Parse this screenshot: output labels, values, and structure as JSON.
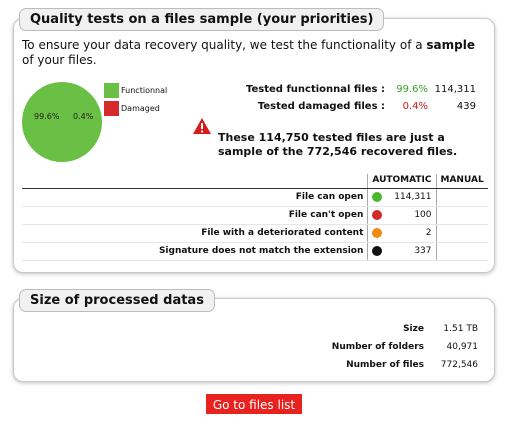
{
  "quality": {
    "title": "Quality tests on a files sample (your priorities)",
    "intro_before": "To ensure your data recovery quality, we test the functionality of a ",
    "intro_bold": "sample",
    "intro_after": " of your files.",
    "pie": {
      "functional_pct_label": "99.6%",
      "damaged_pct_label": "0.4%",
      "legend": [
        {
          "label": "Functionnal",
          "color": "#6abf45"
        },
        {
          "label": "Damaged",
          "color": "#d42a2a"
        }
      ]
    },
    "stats": [
      {
        "label": "Tested functionnal files :",
        "pct": "99.6%",
        "count": "114,311",
        "color": "#3aa02a"
      },
      {
        "label": "Tested damaged files :",
        "pct": "0.4%",
        "count": "439",
        "color": "#d01616"
      }
    ],
    "warning": "These 114,750 tested files are just a sample of the 772,546 recovered files.",
    "table": {
      "col_auto": "AUTOMATIC",
      "col_manual": "MANUAL",
      "rows": [
        {
          "label": "File can open",
          "dot": "#4cb82d",
          "value": "114,311",
          "manual": ""
        },
        {
          "label": "File can't open",
          "dot": "#d02a2a",
          "value": "100",
          "manual": ""
        },
        {
          "label": "File with a deteriorated content",
          "dot": "#ef8a12",
          "value": "2",
          "manual": ""
        },
        {
          "label": "Signature does not match the extension",
          "dot": "#111111",
          "value": "337",
          "manual": ""
        }
      ]
    }
  },
  "processed": {
    "title": "Size of processed datas",
    "rows": [
      {
        "label": "Size",
        "value": "1.51 TB"
      },
      {
        "label": "Number of folders",
        "value": "40,971"
      },
      {
        "label": "Number of files",
        "value": "772,546"
      }
    ]
  },
  "button": {
    "label": "Go to files list"
  }
}
